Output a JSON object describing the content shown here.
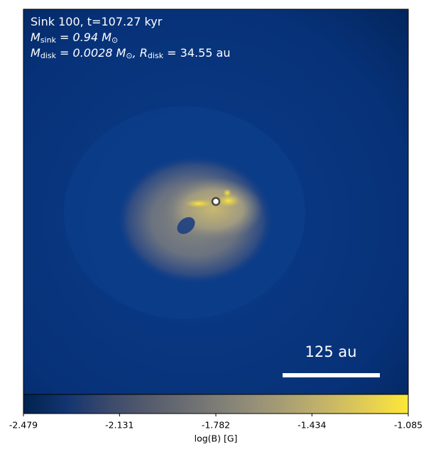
{
  "chart_data": {
    "type": "image",
    "annotations": [
      [
        {
          "text": "Sink 100, t=107.27 kyr"
        }
      ],
      [
        {
          "text": "M"
        },
        {
          "sub": "sink"
        },
        {
          "text": " = 0.94 M"
        },
        {
          "sub": "⊙"
        }
      ],
      [
        {
          "text": "M"
        },
        {
          "sub": "disk"
        },
        {
          "text": " = 0.0028 M"
        },
        {
          "sub": "⊙"
        },
        {
          "text": ", R"
        },
        {
          "sub": "disk"
        },
        {
          "text": " = 34.55 au"
        }
      ]
    ],
    "scale_bar": {
      "label": "125 au"
    },
    "colorbar": {
      "label": "log(B) [G]",
      "lim": [
        -2.479,
        -1.085
      ],
      "ticks": [
        -2.479,
        -2.131,
        -1.782,
        -1.434,
        -1.085
      ],
      "colormap": [
        "#00224e",
        "#123570",
        "#3b496c",
        "#575d6d",
        "#707173",
        "#8a8779",
        "#a59c74",
        "#c3b369",
        "#e1cc55",
        "#fee838"
      ]
    }
  }
}
